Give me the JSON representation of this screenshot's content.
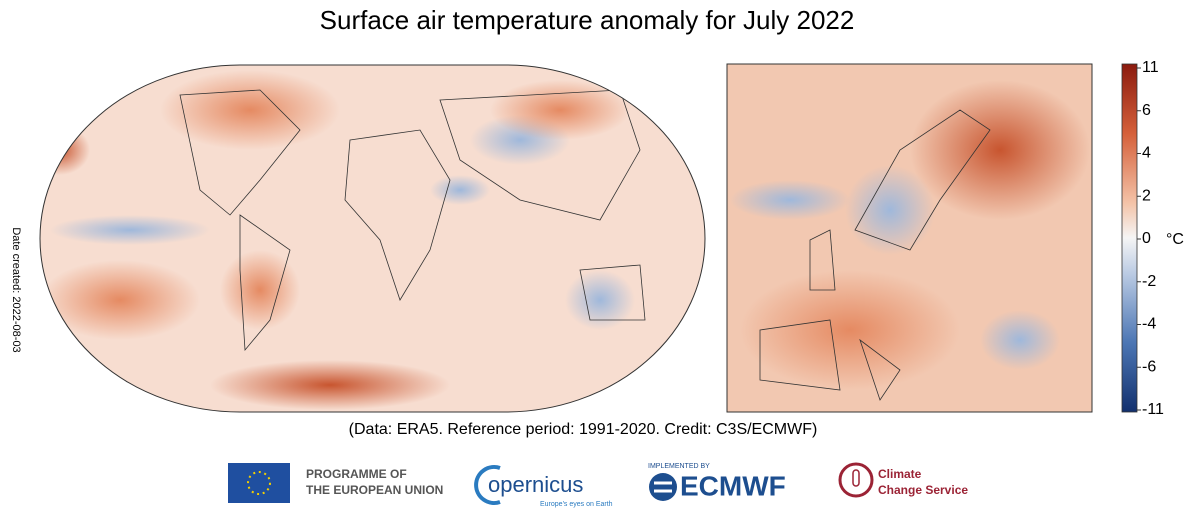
{
  "title": "Surface air temperature anomaly for July 2022",
  "colorbar": {
    "ticks": [
      11,
      6,
      4,
      2,
      0,
      -2,
      -4,
      -6,
      -11
    ],
    "unit": "°C"
  },
  "caption": "(Data: ERA5.  Reference period: 1991-2020.  Credit: C3S/ECMWF)",
  "date_created": "Date created: 2022-08-03",
  "logos": {
    "eu": [
      "PROGRAMME OF",
      "THE EUROPEAN UNION"
    ],
    "copernicus": {
      "name": "opernicus",
      "tagline": "Europe's eyes on Earth"
    },
    "ecmwf": {
      "small": "IMPLEMENTED BY",
      "name": "ECMWF"
    },
    "c3s": [
      "Climate",
      "Change Service"
    ]
  }
}
